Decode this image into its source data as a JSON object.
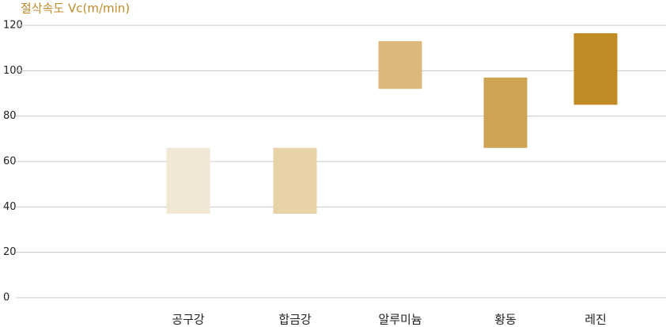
{
  "chart_data": {
    "type": "range-bar",
    "y_label": "절삭속도 Vc(m/min)",
    "categories": [
      "공구강",
      "합금강",
      "알루미늄",
      "황동",
      "레진"
    ],
    "low": [
      37,
      37,
      92,
      66,
      85
    ],
    "high": [
      66,
      66,
      113,
      97,
      116.5
    ],
    "colors": [
      "#f2e7d4",
      "#e8d2a8",
      "#dcb97b",
      "#cda454",
      "#c08a24"
    ],
    "ylim": [
      0,
      120
    ],
    "yticks": [
      0,
      20,
      40,
      60,
      80,
      100,
      120
    ],
    "grid": true
  }
}
